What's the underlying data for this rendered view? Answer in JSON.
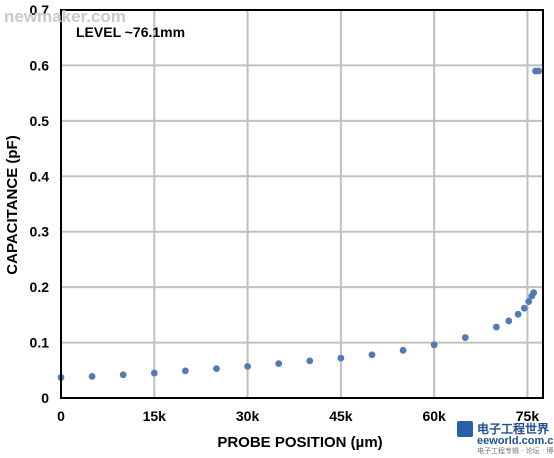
{
  "watermark": "newmaker.com",
  "logo": {
    "cn": "电子工程世界",
    "site": "eeworld.com.cn",
    "small": "电子工程专辑 · 论坛 · 博客"
  },
  "colors": {
    "series": "#4f7cb3",
    "grid": "#c0c0c0",
    "frame": "#000000"
  },
  "chart_data": {
    "type": "scatter",
    "annotation": "LEVEL ~76.1mm",
    "xlabel": "PROBE POSITION (µm)",
    "ylabel": "CAPACITANCE (pF)",
    "xlim": [
      0,
      77500
    ],
    "ylim": [
      0,
      0.7
    ],
    "xticks": [
      0,
      15000,
      30000,
      45000,
      60000,
      75000
    ],
    "xtick_labels": [
      "0",
      "15k",
      "30k",
      "45k",
      "60k",
      "75k"
    ],
    "yticks": [
      0,
      0.1,
      0.2,
      0.3,
      0.4,
      0.5,
      0.6,
      0.7
    ],
    "ytick_labels": [
      "0",
      "0.1",
      "0.2",
      "0.3",
      "0.4",
      "0.5",
      "0.6",
      "0.7"
    ],
    "grid": true,
    "series": [
      {
        "points": [
          [
            0,
            0.037
          ],
          [
            5000,
            0.039
          ],
          [
            10000,
            0.042
          ],
          [
            15000,
            0.045
          ],
          [
            20000,
            0.049
          ],
          [
            25000,
            0.053
          ],
          [
            30000,
            0.057
          ],
          [
            35000,
            0.062
          ],
          [
            40000,
            0.067
          ],
          [
            45000,
            0.072
          ],
          [
            50000,
            0.078
          ],
          [
            55000,
            0.086
          ],
          [
            60000,
            0.096
          ],
          [
            65000,
            0.109
          ],
          [
            70000,
            0.128
          ],
          [
            72000,
            0.139
          ],
          [
            73500,
            0.151
          ],
          [
            74500,
            0.162
          ],
          [
            75200,
            0.174
          ],
          [
            75700,
            0.184
          ],
          [
            76000,
            0.19
          ],
          [
            76300,
            0.59
          ],
          [
            76800,
            0.59
          ]
        ]
      }
    ]
  }
}
